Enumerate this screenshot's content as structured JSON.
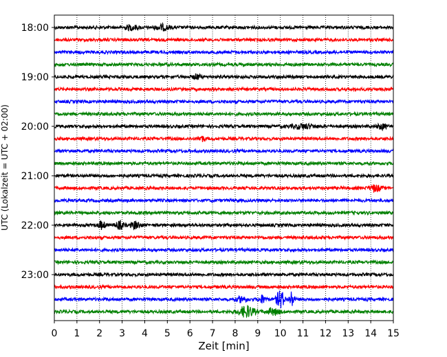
{
  "chart_data": {
    "type": "line",
    "xlabel": "Zeit  [min]",
    "ylabel": "UTC (Lokalzeit = UTC + 02:00)",
    "xlim": [
      0,
      15
    ],
    "x_ticks": [
      "0",
      "1",
      "2",
      "3",
      "4",
      "5",
      "6",
      "7",
      "8",
      "9",
      "10",
      "11",
      "12",
      "13",
      "14",
      "15"
    ],
    "y_ticks": [
      "18:00",
      "19:00",
      "20:00",
      "21:00",
      "22:00",
      "23:00"
    ],
    "grid": "vertical dotted at each minute",
    "trace_colors": [
      "#000000",
      "#ff0000",
      "#0000ff",
      "#008000"
    ],
    "traces_per_hour": 4,
    "trace_interval_min": 15,
    "start_time": "18:00",
    "n_traces": 24,
    "events": [
      {
        "trace": 0,
        "center_min": 3.4,
        "width_min": 0.6,
        "amp": 0.35
      },
      {
        "trace": 0,
        "center_min": 4.8,
        "width_min": 0.6,
        "amp": 0.4
      },
      {
        "trace": 4,
        "center_min": 6.3,
        "width_min": 0.3,
        "amp": 0.4
      },
      {
        "trace": 8,
        "center_min": 11.0,
        "width_min": 1.0,
        "amp": 0.35
      },
      {
        "trace": 8,
        "center_min": 14.5,
        "width_min": 0.4,
        "amp": 0.4
      },
      {
        "trace": 9,
        "center_min": 6.5,
        "width_min": 0.3,
        "amp": 0.45
      },
      {
        "trace": 13,
        "center_min": 14.2,
        "width_min": 0.5,
        "amp": 0.5
      },
      {
        "trace": 16,
        "center_min": 2.1,
        "width_min": 0.3,
        "amp": 0.6
      },
      {
        "trace": 16,
        "center_min": 2.9,
        "width_min": 0.4,
        "amp": 0.55
      },
      {
        "trace": 16,
        "center_min": 3.6,
        "width_min": 0.4,
        "amp": 0.55
      },
      {
        "trace": 22,
        "center_min": 8.3,
        "width_min": 0.4,
        "amp": 0.45
      },
      {
        "trace": 22,
        "center_min": 9.2,
        "width_min": 0.3,
        "amp": 0.6
      },
      {
        "trace": 22,
        "center_min": 10.0,
        "width_min": 0.35,
        "amp": 1.4
      },
      {
        "trace": 22,
        "center_min": 10.5,
        "width_min": 0.2,
        "amp": 1.3
      },
      {
        "trace": 23,
        "center_min": 8.5,
        "width_min": 0.7,
        "amp": 0.85
      },
      {
        "trace": 23,
        "center_min": 9.7,
        "width_min": 0.5,
        "amp": 0.5
      }
    ]
  }
}
